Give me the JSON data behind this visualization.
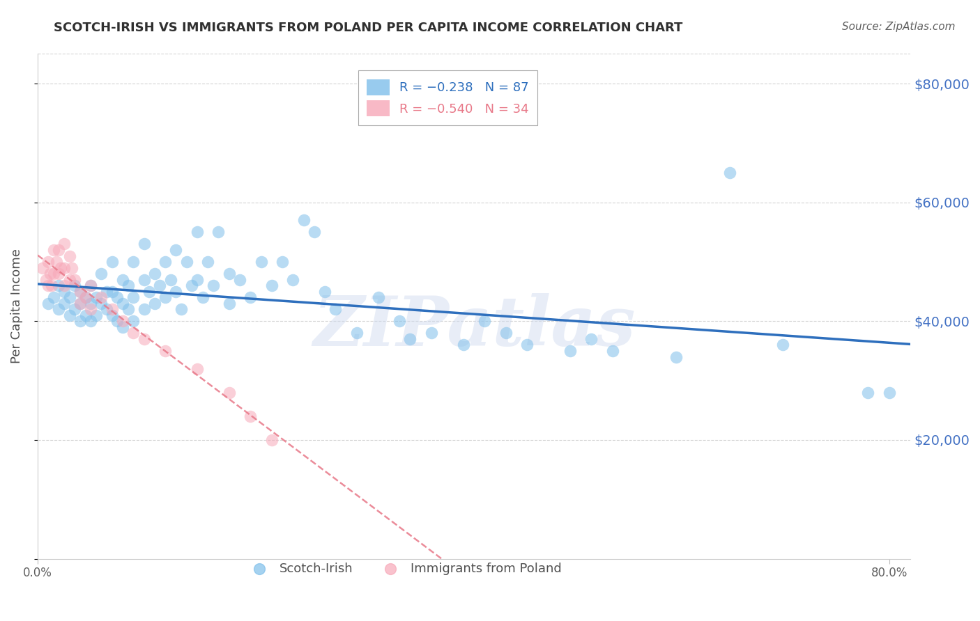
{
  "title": "SCOTCH-IRISH VS IMMIGRANTS FROM POLAND PER CAPITA INCOME CORRELATION CHART",
  "source_text": "Source: ZipAtlas.com",
  "ylabel": "Per Capita Income",
  "yticks": [
    0,
    20000,
    40000,
    60000,
    80000
  ],
  "ytick_labels": [
    "",
    "$20,000",
    "$40,000",
    "$60,000",
    "$80,000"
  ],
  "ylim": [
    0,
    85000
  ],
  "xlim": [
    0.0,
    0.82
  ],
  "watermark": "ZIPatlas",
  "legend_label_scotch": "Scotch-Irish",
  "legend_label_poland": "Immigrants from Poland",
  "scotch_irish_color": "#7fbfea",
  "poland_color": "#f7a8b8",
  "trendline_scotch_color": "#2e6fbd",
  "trendline_poland_color": "#e87888",
  "background_color": "#ffffff",
  "grid_color": "#c8c8c8",
  "title_color": "#303030",
  "axis_label_color": "#505050",
  "ytick_color": "#4472c4",
  "xtick_color": "#606060",
  "source_color": "#606060",
  "scotch_irish_data": [
    [
      0.01,
      43000
    ],
    [
      0.015,
      44000
    ],
    [
      0.02,
      46000
    ],
    [
      0.02,
      42000
    ],
    [
      0.025,
      45000
    ],
    [
      0.025,
      43000
    ],
    [
      0.03,
      44000
    ],
    [
      0.03,
      41000
    ],
    [
      0.035,
      46000
    ],
    [
      0.035,
      42000
    ],
    [
      0.04,
      45000
    ],
    [
      0.04,
      43000
    ],
    [
      0.04,
      40000
    ],
    [
      0.045,
      44000
    ],
    [
      0.045,
      41000
    ],
    [
      0.05,
      46000
    ],
    [
      0.05,
      43000
    ],
    [
      0.05,
      40000
    ],
    [
      0.055,
      44000
    ],
    [
      0.055,
      41000
    ],
    [
      0.06,
      48000
    ],
    [
      0.06,
      43000
    ],
    [
      0.065,
      45000
    ],
    [
      0.065,
      42000
    ],
    [
      0.07,
      50000
    ],
    [
      0.07,
      45000
    ],
    [
      0.07,
      41000
    ],
    [
      0.075,
      44000
    ],
    [
      0.075,
      40000
    ],
    [
      0.08,
      47000
    ],
    [
      0.08,
      43000
    ],
    [
      0.08,
      39000
    ],
    [
      0.085,
      46000
    ],
    [
      0.085,
      42000
    ],
    [
      0.09,
      50000
    ],
    [
      0.09,
      44000
    ],
    [
      0.09,
      40000
    ],
    [
      0.1,
      53000
    ],
    [
      0.1,
      47000
    ],
    [
      0.1,
      42000
    ],
    [
      0.105,
      45000
    ],
    [
      0.11,
      48000
    ],
    [
      0.11,
      43000
    ],
    [
      0.115,
      46000
    ],
    [
      0.12,
      50000
    ],
    [
      0.12,
      44000
    ],
    [
      0.125,
      47000
    ],
    [
      0.13,
      52000
    ],
    [
      0.13,
      45000
    ],
    [
      0.135,
      42000
    ],
    [
      0.14,
      50000
    ],
    [
      0.145,
      46000
    ],
    [
      0.15,
      55000
    ],
    [
      0.15,
      47000
    ],
    [
      0.155,
      44000
    ],
    [
      0.16,
      50000
    ],
    [
      0.165,
      46000
    ],
    [
      0.17,
      55000
    ],
    [
      0.18,
      48000
    ],
    [
      0.18,
      43000
    ],
    [
      0.19,
      47000
    ],
    [
      0.2,
      44000
    ],
    [
      0.21,
      50000
    ],
    [
      0.22,
      46000
    ],
    [
      0.23,
      50000
    ],
    [
      0.24,
      47000
    ],
    [
      0.25,
      57000
    ],
    [
      0.26,
      55000
    ],
    [
      0.27,
      45000
    ],
    [
      0.28,
      42000
    ],
    [
      0.3,
      38000
    ],
    [
      0.32,
      44000
    ],
    [
      0.34,
      40000
    ],
    [
      0.35,
      37000
    ],
    [
      0.37,
      38000
    ],
    [
      0.4,
      36000
    ],
    [
      0.42,
      40000
    ],
    [
      0.44,
      38000
    ],
    [
      0.46,
      36000
    ],
    [
      0.5,
      35000
    ],
    [
      0.52,
      37000
    ],
    [
      0.54,
      35000
    ],
    [
      0.6,
      34000
    ],
    [
      0.65,
      65000
    ],
    [
      0.7,
      36000
    ],
    [
      0.78,
      28000
    ],
    [
      0.8,
      28000
    ]
  ],
  "poland_data": [
    [
      0.005,
      49000
    ],
    [
      0.008,
      47000
    ],
    [
      0.01,
      50000
    ],
    [
      0.01,
      46000
    ],
    [
      0.012,
      48000
    ],
    [
      0.013,
      46000
    ],
    [
      0.015,
      52000
    ],
    [
      0.015,
      48000
    ],
    [
      0.018,
      50000
    ],
    [
      0.02,
      52000
    ],
    [
      0.02,
      48000
    ],
    [
      0.022,
      49000
    ],
    [
      0.025,
      53000
    ],
    [
      0.025,
      49000
    ],
    [
      0.025,
      46000
    ],
    [
      0.03,
      51000
    ],
    [
      0.03,
      47000
    ],
    [
      0.032,
      49000
    ],
    [
      0.035,
      47000
    ],
    [
      0.04,
      45000
    ],
    [
      0.04,
      43000
    ],
    [
      0.045,
      44000
    ],
    [
      0.05,
      46000
    ],
    [
      0.05,
      42000
    ],
    [
      0.06,
      44000
    ],
    [
      0.07,
      42000
    ],
    [
      0.08,
      40000
    ],
    [
      0.09,
      38000
    ],
    [
      0.1,
      37000
    ],
    [
      0.12,
      35000
    ],
    [
      0.15,
      32000
    ],
    [
      0.18,
      28000
    ],
    [
      0.2,
      24000
    ],
    [
      0.22,
      20000
    ]
  ]
}
